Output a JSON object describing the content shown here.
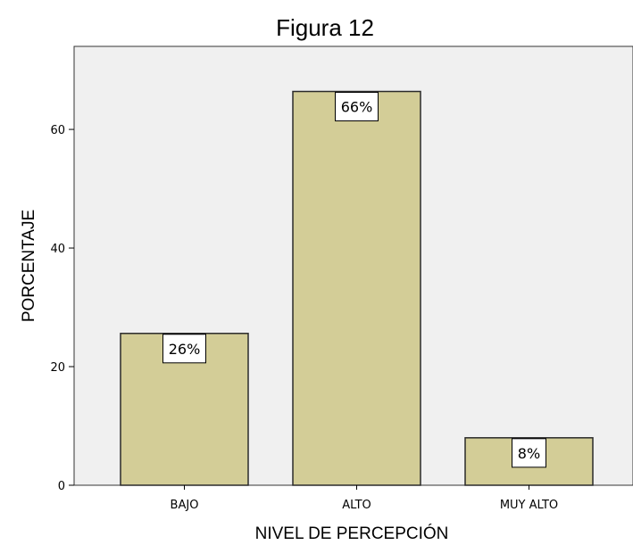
{
  "chart_data": {
    "type": "bar",
    "title": "Figura 12",
    "xlabel": "NIVEL DE PERCEPCIÓN",
    "ylabel": "PORCENTAJE",
    "categories": [
      "BAJO",
      "ALTO",
      "MUY ALTO"
    ],
    "values": [
      25.6,
      66.4,
      8.0
    ],
    "data_labels": [
      "26%",
      "66%",
      "8%"
    ],
    "y_ticks": [
      0,
      20,
      40,
      60
    ],
    "ylim": [
      0,
      74
    ],
    "grid": false,
    "colors": {
      "bar_fill": "#d3cd97",
      "bar_stroke": "#2a2a2a",
      "plot_background": "#f0f0f0",
      "frame": "#333333"
    }
  }
}
